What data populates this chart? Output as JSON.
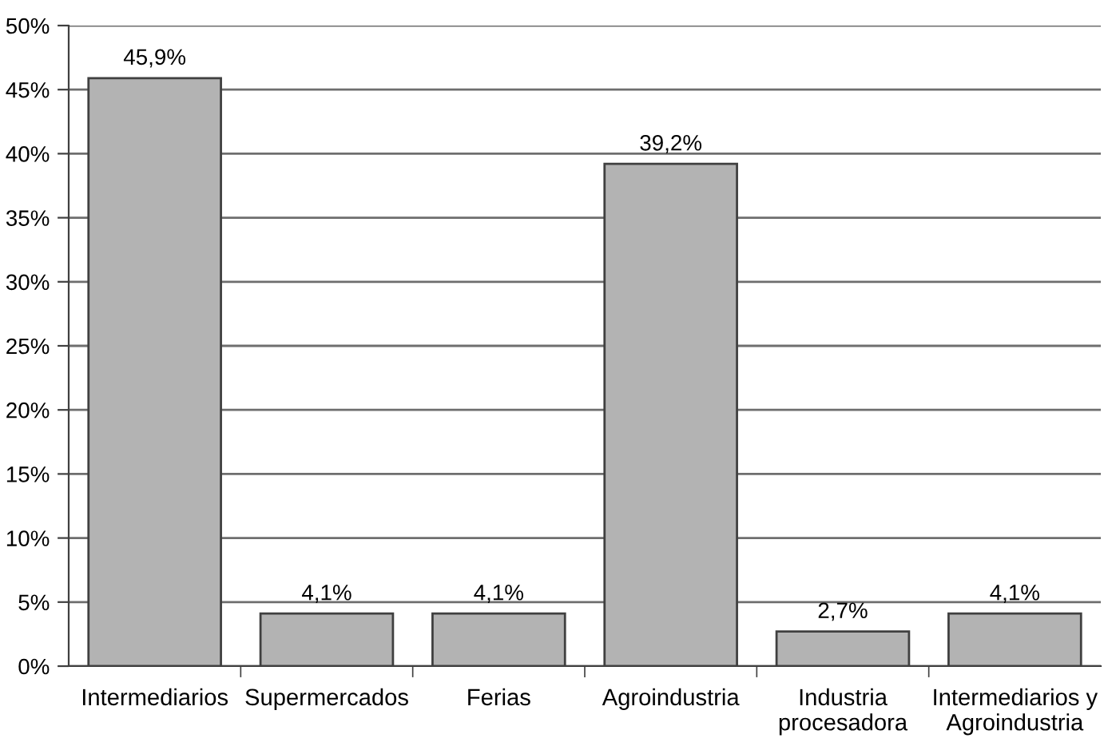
{
  "chart_data": {
    "type": "bar",
    "categories": [
      "Intermediarios",
      "Supermercados",
      "Ferias",
      "Agroindustria",
      "Industria\nprocesadora",
      "Intermediarios y\nAgroindustria"
    ],
    "values": [
      45.9,
      4.1,
      4.1,
      39.2,
      2.7,
      4.1
    ],
    "value_labels": [
      "45,9%",
      "4,1%",
      "4,1%",
      "39,2%",
      "2,7%",
      "4,1%"
    ],
    "color": "#b3b3b3",
    "ylim": [
      0,
      50
    ],
    "yticks": [
      {
        "value": 0,
        "label": "0%"
      },
      {
        "value": 5,
        "label": "5%"
      },
      {
        "value": 10,
        "label": "10%"
      },
      {
        "value": 15,
        "label": "15%"
      },
      {
        "value": 20,
        "label": "20%"
      },
      {
        "value": 25,
        "label": "25%"
      },
      {
        "value": 30,
        "label": "30%"
      },
      {
        "value": 35,
        "label": "35%"
      },
      {
        "value": 40,
        "label": "40%"
      },
      {
        "value": 45,
        "label": "45%"
      },
      {
        "value": 50,
        "label": "50%"
      }
    ],
    "grid": "y",
    "legend": false
  }
}
